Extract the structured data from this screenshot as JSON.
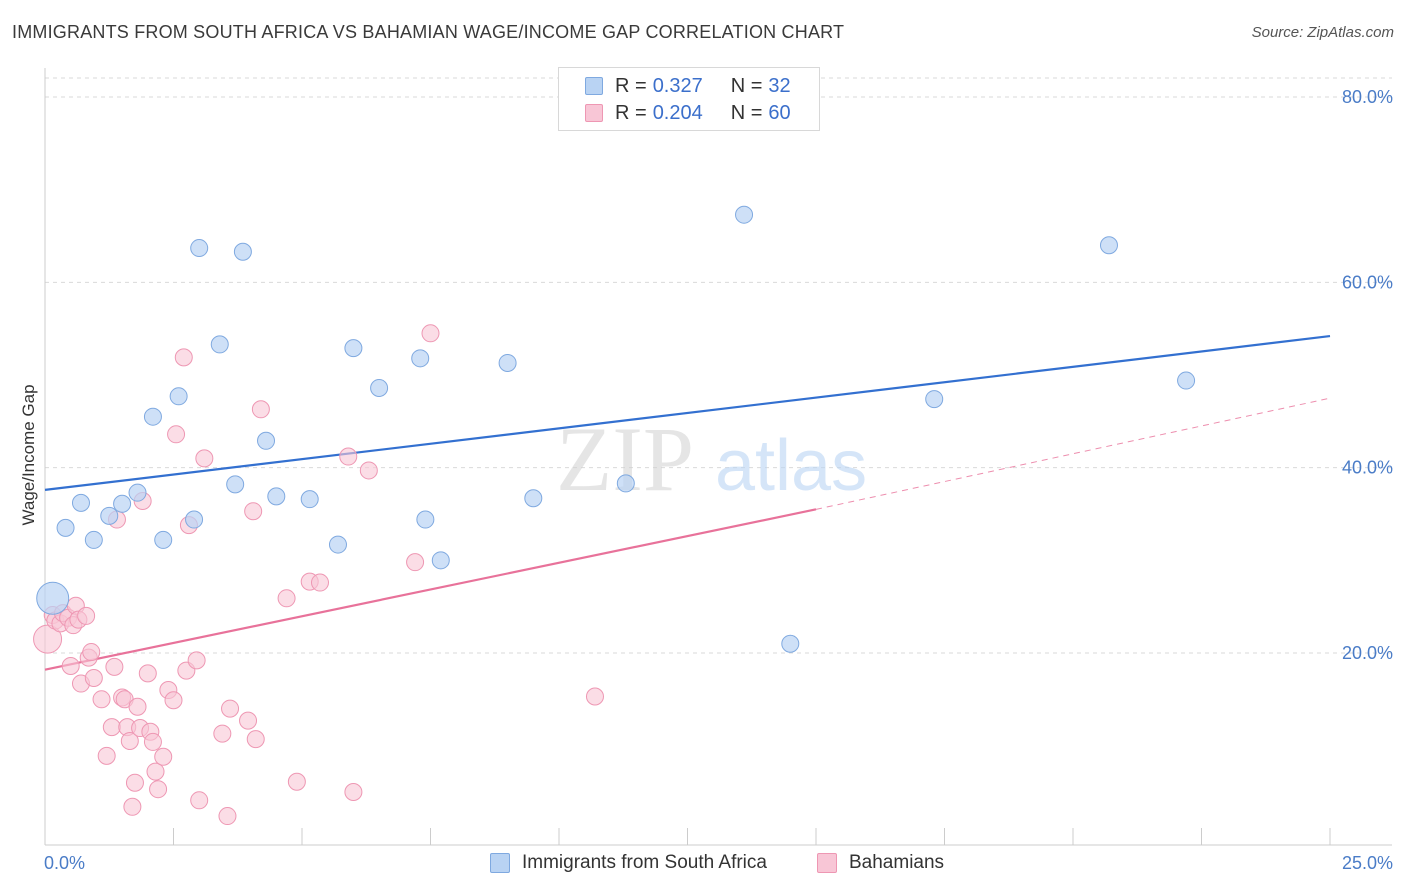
{
  "title": "IMMIGRANTS FROM SOUTH AFRICA VS BAHAMIAN WAGE/INCOME GAP CORRELATION CHART",
  "source_label": "Source:",
  "source_value": "ZipAtlas.com",
  "watermark_zip": "ZIP",
  "watermark_atlas": "atlas",
  "colors": {
    "blue_fill": "#b9d3f3",
    "blue_stroke": "#7fa9e0",
    "blue_line": "#3370d0",
    "pink_fill": "#f8c6d6",
    "pink_stroke": "#ee97b3",
    "pink_line": "#e8729a",
    "tick_text": "#4a7cc7",
    "grid": "#d9d9d9"
  },
  "legend_top": {
    "rows": [
      {
        "r_label": "R =",
        "r_value": "0.327",
        "n_label": "N =",
        "n_value": "32"
      },
      {
        "r_label": "R =",
        "r_value": "0.204",
        "n_label": "N =",
        "n_value": "60"
      }
    ]
  },
  "legend_bottom": {
    "series1": "Immigrants from South Africa",
    "series2": "Bahamians"
  },
  "chart_data": {
    "type": "scatter",
    "title": "IMMIGRANTS FROM SOUTH AFRICA VS BAHAMIAN WAGE/INCOME GAP CORRELATION CHART",
    "xlabel": "",
    "ylabel": "Wage/Income Gap",
    "xlim": [
      0,
      25
    ],
    "ylim": [
      0,
      80
    ],
    "x_tick_labels": [
      "0.0%",
      "25.0%"
    ],
    "y_tick_labels": [
      "20.0%",
      "40.0%",
      "60.0%",
      "80.0%"
    ],
    "y_tick_values": [
      20,
      40,
      60,
      80
    ],
    "series": [
      {
        "name": "Immigrants from South Africa",
        "r": 0.327,
        "n": 32,
        "trend": {
          "x0": 0,
          "y0": 37.6,
          "x1": 25,
          "y1": 54.2
        },
        "points": [
          {
            "x": 0.15,
            "y": 25.9,
            "big": true
          },
          {
            "x": 0.4,
            "y": 33.5
          },
          {
            "x": 0.7,
            "y": 36.2
          },
          {
            "x": 0.95,
            "y": 32.2
          },
          {
            "x": 1.25,
            "y": 34.8
          },
          {
            "x": 1.5,
            "y": 36.1
          },
          {
            "x": 1.8,
            "y": 37.3
          },
          {
            "x": 2.1,
            "y": 45.5
          },
          {
            "x": 2.3,
            "y": 32.2
          },
          {
            "x": 2.6,
            "y": 47.7
          },
          {
            "x": 2.9,
            "y": 34.4
          },
          {
            "x": 3.0,
            "y": 63.7
          },
          {
            "x": 3.4,
            "y": 53.3
          },
          {
            "x": 3.7,
            "y": 38.2
          },
          {
            "x": 3.85,
            "y": 63.3
          },
          {
            "x": 4.3,
            "y": 42.9
          },
          {
            "x": 4.5,
            "y": 36.9
          },
          {
            "x": 5.15,
            "y": 36.6
          },
          {
            "x": 5.7,
            "y": 31.7
          },
          {
            "x": 6.0,
            "y": 52.9
          },
          {
            "x": 6.5,
            "y": 48.6
          },
          {
            "x": 7.3,
            "y": 51.8
          },
          {
            "x": 7.4,
            "y": 34.4
          },
          {
            "x": 7.7,
            "y": 30.0
          },
          {
            "x": 9.0,
            "y": 51.3
          },
          {
            "x": 9.5,
            "y": 36.7
          },
          {
            "x": 11.3,
            "y": 38.3
          },
          {
            "x": 13.6,
            "y": 67.3
          },
          {
            "x": 14.5,
            "y": 21.0
          },
          {
            "x": 17.3,
            "y": 47.4
          },
          {
            "x": 20.7,
            "y": 64.0
          },
          {
            "x": 22.2,
            "y": 49.4
          }
        ]
      },
      {
        "name": "Bahamians",
        "r": 0.204,
        "n": 60,
        "trend": {
          "x0": 0,
          "y0": 18.2,
          "x1": 15,
          "y1": 35.5
        },
        "trend_dashed": {
          "x0": 15,
          "y0": 35.5,
          "x1": 25,
          "y1": 47.5
        },
        "points": [
          {
            "x": 0.05,
            "y": 21.5,
            "big": true
          },
          {
            "x": 0.15,
            "y": 24.1
          },
          {
            "x": 0.2,
            "y": 23.5
          },
          {
            "x": 0.3,
            "y": 23.2
          },
          {
            "x": 0.35,
            "y": 24.3
          },
          {
            "x": 0.45,
            "y": 23.8
          },
          {
            "x": 0.5,
            "y": 18.6
          },
          {
            "x": 0.55,
            "y": 23.0
          },
          {
            "x": 0.6,
            "y": 25.1
          },
          {
            "x": 0.65,
            "y": 23.6
          },
          {
            "x": 0.7,
            "y": 16.7
          },
          {
            "x": 0.8,
            "y": 24.0
          },
          {
            "x": 0.85,
            "y": 19.5
          },
          {
            "x": 0.9,
            "y": 20.1
          },
          {
            "x": 0.95,
            "y": 17.3
          },
          {
            "x": 1.1,
            "y": 15.0
          },
          {
            "x": 1.2,
            "y": 8.9
          },
          {
            "x": 1.3,
            "y": 12.0
          },
          {
            "x": 1.35,
            "y": 18.5
          },
          {
            "x": 1.4,
            "y": 34.4
          },
          {
            "x": 1.5,
            "y": 15.2
          },
          {
            "x": 1.55,
            "y": 15.0
          },
          {
            "x": 1.6,
            "y": 12.0
          },
          {
            "x": 1.65,
            "y": 10.5
          },
          {
            "x": 1.7,
            "y": 3.4
          },
          {
            "x": 1.75,
            "y": 6.0
          },
          {
            "x": 1.8,
            "y": 14.2
          },
          {
            "x": 1.85,
            "y": 11.9
          },
          {
            "x": 1.9,
            "y": 36.4
          },
          {
            "x": 2.0,
            "y": 17.8
          },
          {
            "x": 2.05,
            "y": 11.5
          },
          {
            "x": 2.1,
            "y": 10.4
          },
          {
            "x": 2.15,
            "y": 7.2
          },
          {
            "x": 2.2,
            "y": 5.3
          },
          {
            "x": 2.3,
            "y": 8.8
          },
          {
            "x": 2.4,
            "y": 16.0
          },
          {
            "x": 2.5,
            "y": 14.9
          },
          {
            "x": 2.55,
            "y": 43.6
          },
          {
            "x": 2.7,
            "y": 51.9
          },
          {
            "x": 2.75,
            "y": 18.1
          },
          {
            "x": 2.8,
            "y": 33.8
          },
          {
            "x": 2.95,
            "y": 19.2
          },
          {
            "x": 3.0,
            "y": 4.1
          },
          {
            "x": 3.1,
            "y": 41.0
          },
          {
            "x": 3.45,
            "y": 11.3
          },
          {
            "x": 3.55,
            "y": 2.4
          },
          {
            "x": 3.6,
            "y": 14.0
          },
          {
            "x": 3.95,
            "y": 12.7
          },
          {
            "x": 4.05,
            "y": 35.3
          },
          {
            "x": 4.1,
            "y": 10.7
          },
          {
            "x": 4.2,
            "y": 46.3
          },
          {
            "x": 4.7,
            "y": 25.9
          },
          {
            "x": 4.9,
            "y": 6.1
          },
          {
            "x": 5.15,
            "y": 27.7
          },
          {
            "x": 5.35,
            "y": 27.6
          },
          {
            "x": 5.9,
            "y": 41.2
          },
          {
            "x": 6.0,
            "y": 5.0
          },
          {
            "x": 6.3,
            "y": 39.7
          },
          {
            "x": 7.2,
            "y": 29.8
          },
          {
            "x": 7.5,
            "y": 54.5
          },
          {
            "x": 10.7,
            "y": 15.3
          }
        ]
      }
    ]
  }
}
